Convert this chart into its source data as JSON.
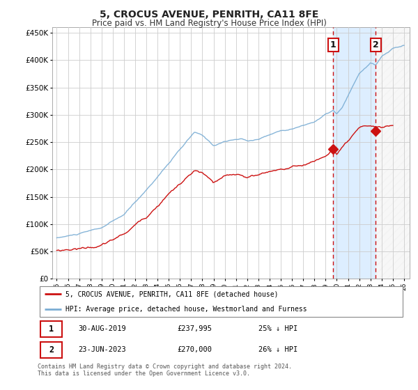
{
  "title": "5, CROCUS AVENUE, PENRITH, CA11 8FE",
  "subtitle": "Price paid vs. HM Land Registry's House Price Index (HPI)",
  "title_fontsize": 10,
  "subtitle_fontsize": 8.5,
  "hpi_color": "#7aadd4",
  "price_color": "#cc1111",
  "marker1_year": 2019.67,
  "marker2_year": 2023.47,
  "marker1_price": 237995,
  "marker2_price": 270000,
  "legend_line1": "5, CROCUS AVENUE, PENRITH, CA11 8FE (detached house)",
  "legend_line2": "HPI: Average price, detached house, Westmorland and Furness",
  "annotation1_label": "1",
  "annotation1_date": "30-AUG-2019",
  "annotation1_price": "£237,995",
  "annotation1_hpi": "25% ↓ HPI",
  "annotation2_label": "2",
  "annotation2_date": "23-JUN-2023",
  "annotation2_price": "£270,000",
  "annotation2_hpi": "26% ↓ HPI",
  "footer": "Contains HM Land Registry data © Crown copyright and database right 2024.\nThis data is licensed under the Open Government Licence v3.0.",
  "background_color": "#ffffff",
  "grid_color": "#cccccc",
  "shade_color": "#ddeeff",
  "hatch_color": "#dddddd"
}
